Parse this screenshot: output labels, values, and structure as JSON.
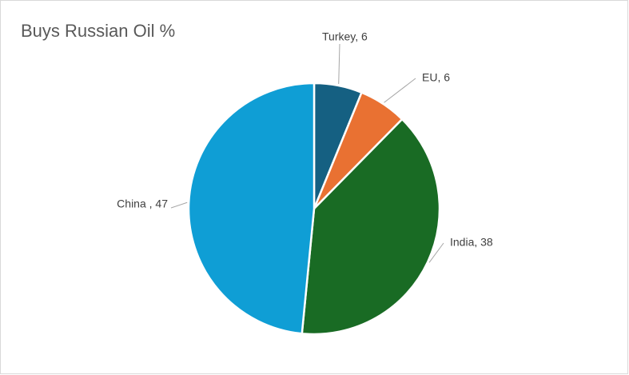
{
  "chart_data": {
    "type": "pie",
    "title": "Buys Russian Oil %",
    "values": [
      6,
      6,
      38,
      47
    ],
    "value_labels": [
      "Turkey, 6",
      "EU, 6",
      "India, 38",
      "China , 47"
    ],
    "colors": [
      "#156082",
      "#e97132",
      "#196b24",
      "#0f9ed5"
    ]
  }
}
